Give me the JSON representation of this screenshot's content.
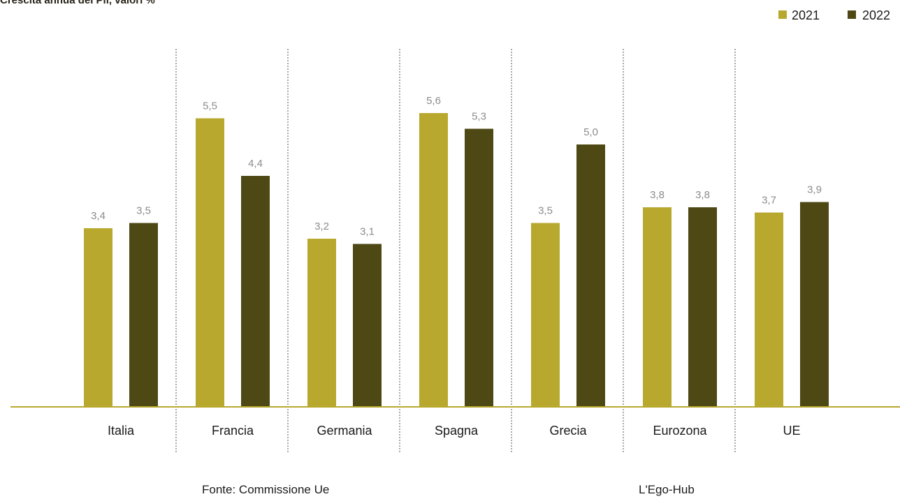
{
  "chart_data": {
    "type": "bar",
    "subtitle": "Crescita annua del Pil, valori %",
    "categories": [
      "Italia",
      "Francia",
      "Germania",
      "Spagna",
      "Grecia",
      "Eurozona",
      "UE"
    ],
    "series": [
      {
        "name": "2021",
        "values": [
          3.4,
          5.5,
          3.2,
          5.6,
          3.5,
          3.8,
          3.7
        ],
        "labels": [
          "3,4",
          "5,5",
          "3,2",
          "5,6",
          "3,5",
          "3,8",
          "3,7"
        ],
        "color": "#b8a82e"
      },
      {
        "name": "2022",
        "values": [
          3.5,
          4.4,
          3.1,
          5.3,
          5.0,
          3.8,
          3.9
        ],
        "labels": [
          "3,5",
          "4,4",
          "3,1",
          "5,3",
          "5,0",
          "3,8",
          "3,9"
        ],
        "color": "#4e4814"
      }
    ],
    "ylim": [
      0,
      6
    ],
    "grid": false,
    "legend_position": "top-right",
    "axis_color": "#b8a82e",
    "separator_color": "#555555"
  },
  "footer": {
    "source": "Fonte: Commissione Ue",
    "credit": "L'Ego-Hub"
  }
}
